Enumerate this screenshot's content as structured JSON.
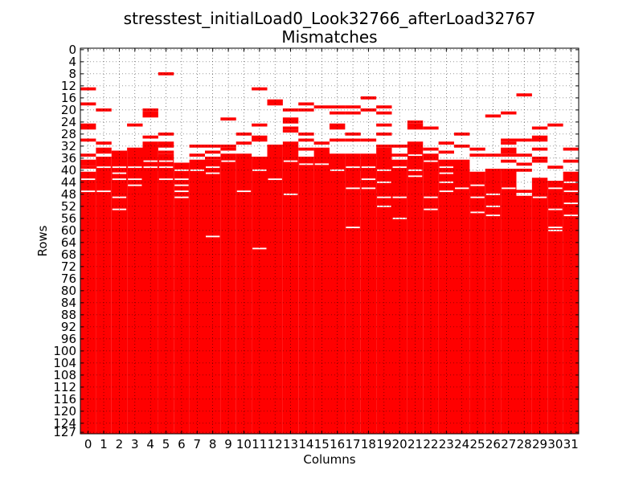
{
  "chart_data": {
    "type": "heatmap",
    "title": "stresstest_initialLoad0_Look32766_afterLoad32767",
    "subtitle": "Mismatches",
    "xlabel": "Columns",
    "ylabel": "Rows",
    "x_ticks": [
      "0",
      "1",
      "2",
      "3",
      "4",
      "5",
      "6",
      "7",
      "8",
      "9",
      "10",
      "11",
      "12",
      "13",
      "14",
      "15",
      "16",
      "17",
      "18",
      "19",
      "20",
      "21",
      "22",
      "23",
      "24",
      "25",
      "26",
      "27",
      "28",
      "29",
      "30",
      "31"
    ],
    "y_ticks": [
      "0",
      "4",
      "8",
      "12",
      "16",
      "20",
      "24",
      "28",
      "32",
      "36",
      "40",
      "44",
      "48",
      "52",
      "56",
      "60",
      "64",
      "68",
      "72",
      "76",
      "80",
      "84",
      "88",
      "92",
      "96",
      "100",
      "104",
      "108",
      "112",
      "116",
      "120",
      "124",
      "127"
    ],
    "xlim": [
      0,
      31
    ],
    "ylim": [
      0,
      127
    ],
    "y_inverted": true,
    "grid": true,
    "mismatch_color": "#ff0000",
    "background_color": "#ffffff",
    "columns": [
      {
        "col": 0,
        "solid_from": 41,
        "extra_rows": [
          13,
          18,
          25,
          26,
          30,
          35,
          37,
          38,
          39
        ],
        "gaps": [
          43,
          47
        ]
      },
      {
        "col": 1,
        "solid_from": 36,
        "extra_rows": [
          20,
          31,
          33,
          34
        ],
        "gaps": [
          39,
          47
        ]
      },
      {
        "col": 2,
        "solid_from": 34,
        "extra_rows": [],
        "gaps": [
          39,
          41,
          43,
          49,
          53
        ]
      },
      {
        "col": 3,
        "solid_from": 33,
        "extra_rows": [
          25
        ],
        "gaps": [
          39,
          43,
          45
        ]
      },
      {
        "col": 4,
        "solid_from": 32,
        "extra_rows": [
          20,
          21,
          22,
          29,
          31
        ],
        "gaps": [
          37,
          39
        ]
      },
      {
        "col": 5,
        "solid_from": 35,
        "extra_rows": [
          8,
          28,
          31,
          32,
          34
        ],
        "gaps": [
          37,
          39,
          43
        ]
      },
      {
        "col": 6,
        "solid_from": 38,
        "extra_rows": [],
        "gaps": [
          40,
          43,
          45,
          47,
          49
        ]
      },
      {
        "col": 7,
        "solid_from": 37,
        "extra_rows": [
          32,
          35
        ],
        "gaps": [
          40
        ]
      },
      {
        "col": 8,
        "solid_from": 37,
        "extra_rows": [
          32,
          34,
          36
        ],
        "gaps": [
          39,
          41,
          62
        ]
      },
      {
        "col": 9,
        "solid_from": 35,
        "extra_rows": [
          23,
          32,
          33
        ],
        "gaps": [
          37
        ]
      },
      {
        "col": 10,
        "solid_from": 35,
        "extra_rows": [
          28,
          31
        ],
        "gaps": [
          33,
          47
        ]
      },
      {
        "col": 11,
        "solid_from": 36,
        "extra_rows": [
          13,
          25,
          29,
          30
        ],
        "gaps": [
          40,
          66
        ]
      },
      {
        "col": 12,
        "solid_from": 32,
        "extra_rows": [
          17,
          18
        ],
        "gaps": [
          43
        ]
      },
      {
        "col": 13,
        "solid_from": 32,
        "extra_rows": [
          20,
          23,
          24,
          26,
          27,
          31
        ],
        "gaps": [
          37,
          48
        ]
      },
      {
        "col": 14,
        "solid_from": 36,
        "extra_rows": [
          18,
          20,
          28,
          30,
          33
        ],
        "gaps": [
          35,
          38
        ]
      },
      {
        "col": 15,
        "solid_from": 33,
        "extra_rows": [
          19,
          31
        ],
        "gaps": [
          38
        ]
      },
      {
        "col": 16,
        "solid_from": 35,
        "extra_rows": [
          19,
          21,
          25,
          26,
          30
        ],
        "gaps": [
          33,
          40
        ]
      },
      {
        "col": 17,
        "solid_from": 35,
        "extra_rows": [
          19,
          21,
          28,
          30
        ],
        "gaps": [
          33,
          39,
          46,
          59
        ]
      },
      {
        "col": 18,
        "solid_from": 35,
        "extra_rows": [
          16,
          20,
          30
        ],
        "gaps": [
          39,
          43,
          46
        ]
      },
      {
        "col": 19,
        "solid_from": 34,
        "extra_rows": [
          19,
          21,
          25,
          28,
          32,
          33
        ],
        "gaps": [
          40,
          44,
          49,
          52
        ]
      },
      {
        "col": 20,
        "solid_from": 37,
        "extra_rows": [
          32,
          35
        ],
        "gaps": [
          39,
          49,
          56
        ]
      },
      {
        "col": 21,
        "solid_from": 31,
        "extra_rows": [
          24,
          25,
          26
        ],
        "gaps": [
          35,
          40,
          42
        ]
      },
      {
        "col": 22,
        "solid_from": 35,
        "extra_rows": [
          26,
          33
        ],
        "gaps": [
          37,
          49,
          53
        ]
      },
      {
        "col": 23,
        "solid_from": 37,
        "extra_rows": [
          31,
          34
        ],
        "gaps": [
          39,
          41,
          44,
          47
        ]
      },
      {
        "col": 24,
        "solid_from": 37,
        "extra_rows": [
          28,
          32
        ],
        "gaps": [
          46
        ]
      },
      {
        "col": 25,
        "solid_from": 41,
        "extra_rows": [
          33,
          35
        ],
        "gaps": [
          45,
          49,
          54
        ]
      },
      {
        "col": 26,
        "solid_from": 40,
        "extra_rows": [
          22,
          35
        ],
        "gaps": [
          48,
          52,
          55
        ]
      },
      {
        "col": 27,
        "solid_from": 40,
        "extra_rows": [
          21,
          30,
          31,
          33,
          34,
          35,
          37
        ],
        "gaps": [
          46
        ]
      },
      {
        "col": 28,
        "solid_from": 49,
        "extra_rows": [
          15,
          30,
          35,
          38,
          40,
          47
        ],
        "gaps": []
      },
      {
        "col": 29,
        "solid_from": 43,
        "extra_rows": [
          26,
          29,
          30,
          33,
          36,
          37
        ],
        "gaps": [
          49
        ]
      },
      {
        "col": 30,
        "solid_from": 44,
        "extra_rows": [
          25,
          39
        ],
        "gaps": [
          46,
          53,
          59,
          60
        ]
      },
      {
        "col": 31,
        "solid_from": 41,
        "extra_rows": [
          33,
          37
        ],
        "gaps": [
          44,
          47,
          51,
          55
        ]
      }
    ]
  }
}
